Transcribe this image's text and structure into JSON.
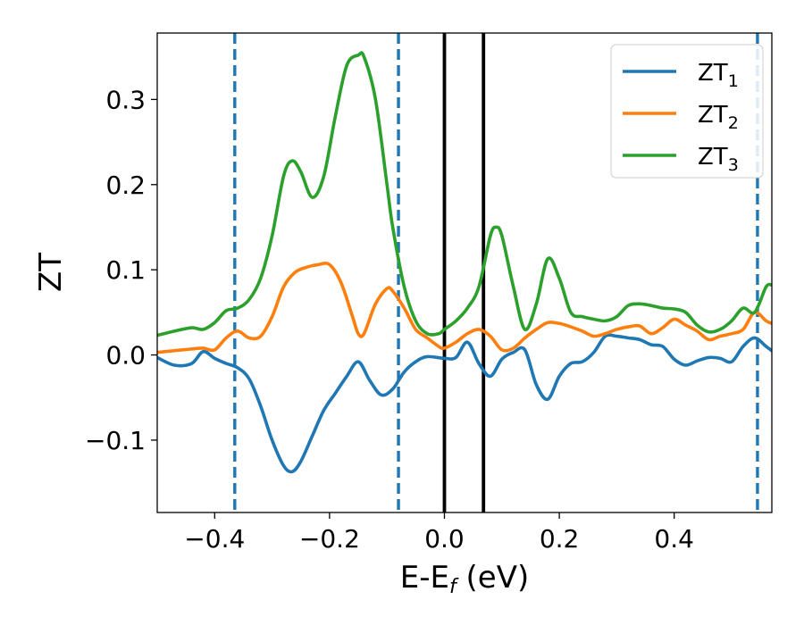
{
  "chart_data": {
    "type": "line",
    "xlabel": "E-E",
    "xlabel_sub": "f",
    "xlabel_unit": " (eV)",
    "ylabel": "ZT",
    "xlim": [
      -0.5,
      0.57
    ],
    "ylim": [
      -0.185,
      0.378
    ],
    "xticks": [
      -0.4,
      -0.2,
      0.0,
      0.2,
      0.4
    ],
    "xtick_labels": [
      "−0.4",
      "−0.2",
      "0.0",
      "0.2",
      "0.4"
    ],
    "yticks": [
      -0.1,
      0.0,
      0.1,
      0.2,
      0.3
    ],
    "ytick_labels": [
      "−0.1",
      "0.0",
      "0.1",
      "0.2",
      "0.3"
    ],
    "legend_position": "top-right",
    "grid": false,
    "vlines": [
      {
        "x": -0.365,
        "style": "dashed",
        "color": "#1f77b4"
      },
      {
        "x": -0.08,
        "style": "dashed",
        "color": "#1f77b4"
      },
      {
        "x": 0.0,
        "style": "solid",
        "color": "#000000"
      },
      {
        "x": 0.068,
        "style": "solid",
        "color": "#000000"
      },
      {
        "x": 0.545,
        "style": "dashed",
        "color": "#1f77b4"
      }
    ],
    "series": [
      {
        "name": "ZT",
        "name_sub": "1",
        "color": "#1f77b4",
        "x": [
          -0.5,
          -0.47,
          -0.44,
          -0.42,
          -0.4,
          -0.38,
          -0.36,
          -0.34,
          -0.32,
          -0.3,
          -0.28,
          -0.265,
          -0.25,
          -0.23,
          -0.21,
          -0.19,
          -0.17,
          -0.15,
          -0.13,
          -0.11,
          -0.09,
          -0.07,
          -0.05,
          -0.03,
          0.0,
          0.02,
          0.04,
          0.06,
          0.08,
          0.1,
          0.12,
          0.14,
          0.16,
          0.18,
          0.2,
          0.22,
          0.24,
          0.26,
          0.28,
          0.3,
          0.32,
          0.34,
          0.36,
          0.38,
          0.4,
          0.42,
          0.44,
          0.46,
          0.48,
          0.5,
          0.52,
          0.54,
          0.56,
          0.57
        ],
        "y": [
          -0.003,
          -0.012,
          -0.01,
          0.004,
          -0.004,
          -0.01,
          -0.015,
          -0.028,
          -0.06,
          -0.1,
          -0.13,
          -0.137,
          -0.125,
          -0.095,
          -0.065,
          -0.045,
          -0.025,
          -0.008,
          -0.03,
          -0.047,
          -0.04,
          -0.02,
          -0.008,
          -0.002,
          -0.004,
          -0.003,
          0.015,
          -0.01,
          -0.025,
          -0.005,
          0.003,
          0.006,
          -0.035,
          -0.052,
          -0.025,
          -0.01,
          -0.008,
          0.003,
          0.022,
          0.022,
          0.02,
          0.018,
          0.012,
          0.01,
          -0.005,
          -0.012,
          -0.007,
          -0.003,
          -0.004,
          -0.008,
          0.01,
          0.02,
          0.01,
          0.005
        ]
      },
      {
        "name": "ZT",
        "name_sub": "2",
        "color": "#ff7f0e",
        "x": [
          -0.5,
          -0.47,
          -0.44,
          -0.42,
          -0.4,
          -0.38,
          -0.36,
          -0.34,
          -0.32,
          -0.3,
          -0.28,
          -0.26,
          -0.24,
          -0.22,
          -0.2,
          -0.18,
          -0.16,
          -0.15,
          -0.14,
          -0.12,
          -0.1,
          -0.09,
          -0.07,
          -0.05,
          -0.03,
          -0.01,
          0.0,
          0.02,
          0.04,
          0.06,
          0.08,
          0.1,
          0.12,
          0.14,
          0.16,
          0.18,
          0.2,
          0.22,
          0.24,
          0.26,
          0.28,
          0.3,
          0.32,
          0.34,
          0.36,
          0.38,
          0.4,
          0.42,
          0.44,
          0.46,
          0.48,
          0.5,
          0.52,
          0.54,
          0.56,
          0.57
        ],
        "y": [
          0.003,
          0.005,
          0.007,
          0.008,
          0.006,
          0.02,
          0.028,
          0.02,
          0.022,
          0.045,
          0.08,
          0.097,
          0.103,
          0.106,
          0.106,
          0.085,
          0.045,
          0.025,
          0.025,
          0.06,
          0.078,
          0.075,
          0.055,
          0.03,
          0.02,
          0.01,
          0.008,
          0.015,
          0.025,
          0.03,
          0.022,
          0.006,
          0.008,
          0.02,
          0.03,
          0.038,
          0.037,
          0.033,
          0.028,
          0.022,
          0.025,
          0.03,
          0.033,
          0.034,
          0.025,
          0.032,
          0.042,
          0.035,
          0.028,
          0.018,
          0.022,
          0.025,
          0.03,
          0.05,
          0.04,
          0.037
        ]
      },
      {
        "name": "ZT",
        "name_sub": "3",
        "color": "#2ca02c",
        "x": [
          -0.5,
          -0.47,
          -0.44,
          -0.42,
          -0.4,
          -0.38,
          -0.36,
          -0.34,
          -0.32,
          -0.3,
          -0.28,
          -0.265,
          -0.25,
          -0.23,
          -0.21,
          -0.19,
          -0.17,
          -0.15,
          -0.14,
          -0.12,
          -0.1,
          -0.09,
          -0.07,
          -0.05,
          -0.03,
          -0.01,
          0.0,
          0.02,
          0.04,
          0.06,
          0.08,
          0.09,
          0.1,
          0.12,
          0.14,
          0.16,
          0.18,
          0.2,
          0.22,
          0.24,
          0.26,
          0.28,
          0.3,
          0.32,
          0.34,
          0.36,
          0.38,
          0.4,
          0.42,
          0.44,
          0.46,
          0.48,
          0.5,
          0.52,
          0.54,
          0.56,
          0.57
        ],
        "y": [
          0.023,
          0.028,
          0.032,
          0.03,
          0.038,
          0.052,
          0.055,
          0.065,
          0.09,
          0.14,
          0.21,
          0.228,
          0.215,
          0.185,
          0.21,
          0.28,
          0.34,
          0.352,
          0.35,
          0.3,
          0.2,
          0.15,
          0.08,
          0.04,
          0.025,
          0.025,
          0.03,
          0.04,
          0.055,
          0.08,
          0.14,
          0.15,
          0.14,
          0.08,
          0.03,
          0.06,
          0.113,
          0.09,
          0.05,
          0.045,
          0.042,
          0.04,
          0.045,
          0.058,
          0.06,
          0.058,
          0.055,
          0.054,
          0.05,
          0.035,
          0.027,
          0.03,
          0.04,
          0.055,
          0.05,
          0.08,
          0.082
        ]
      }
    ]
  }
}
